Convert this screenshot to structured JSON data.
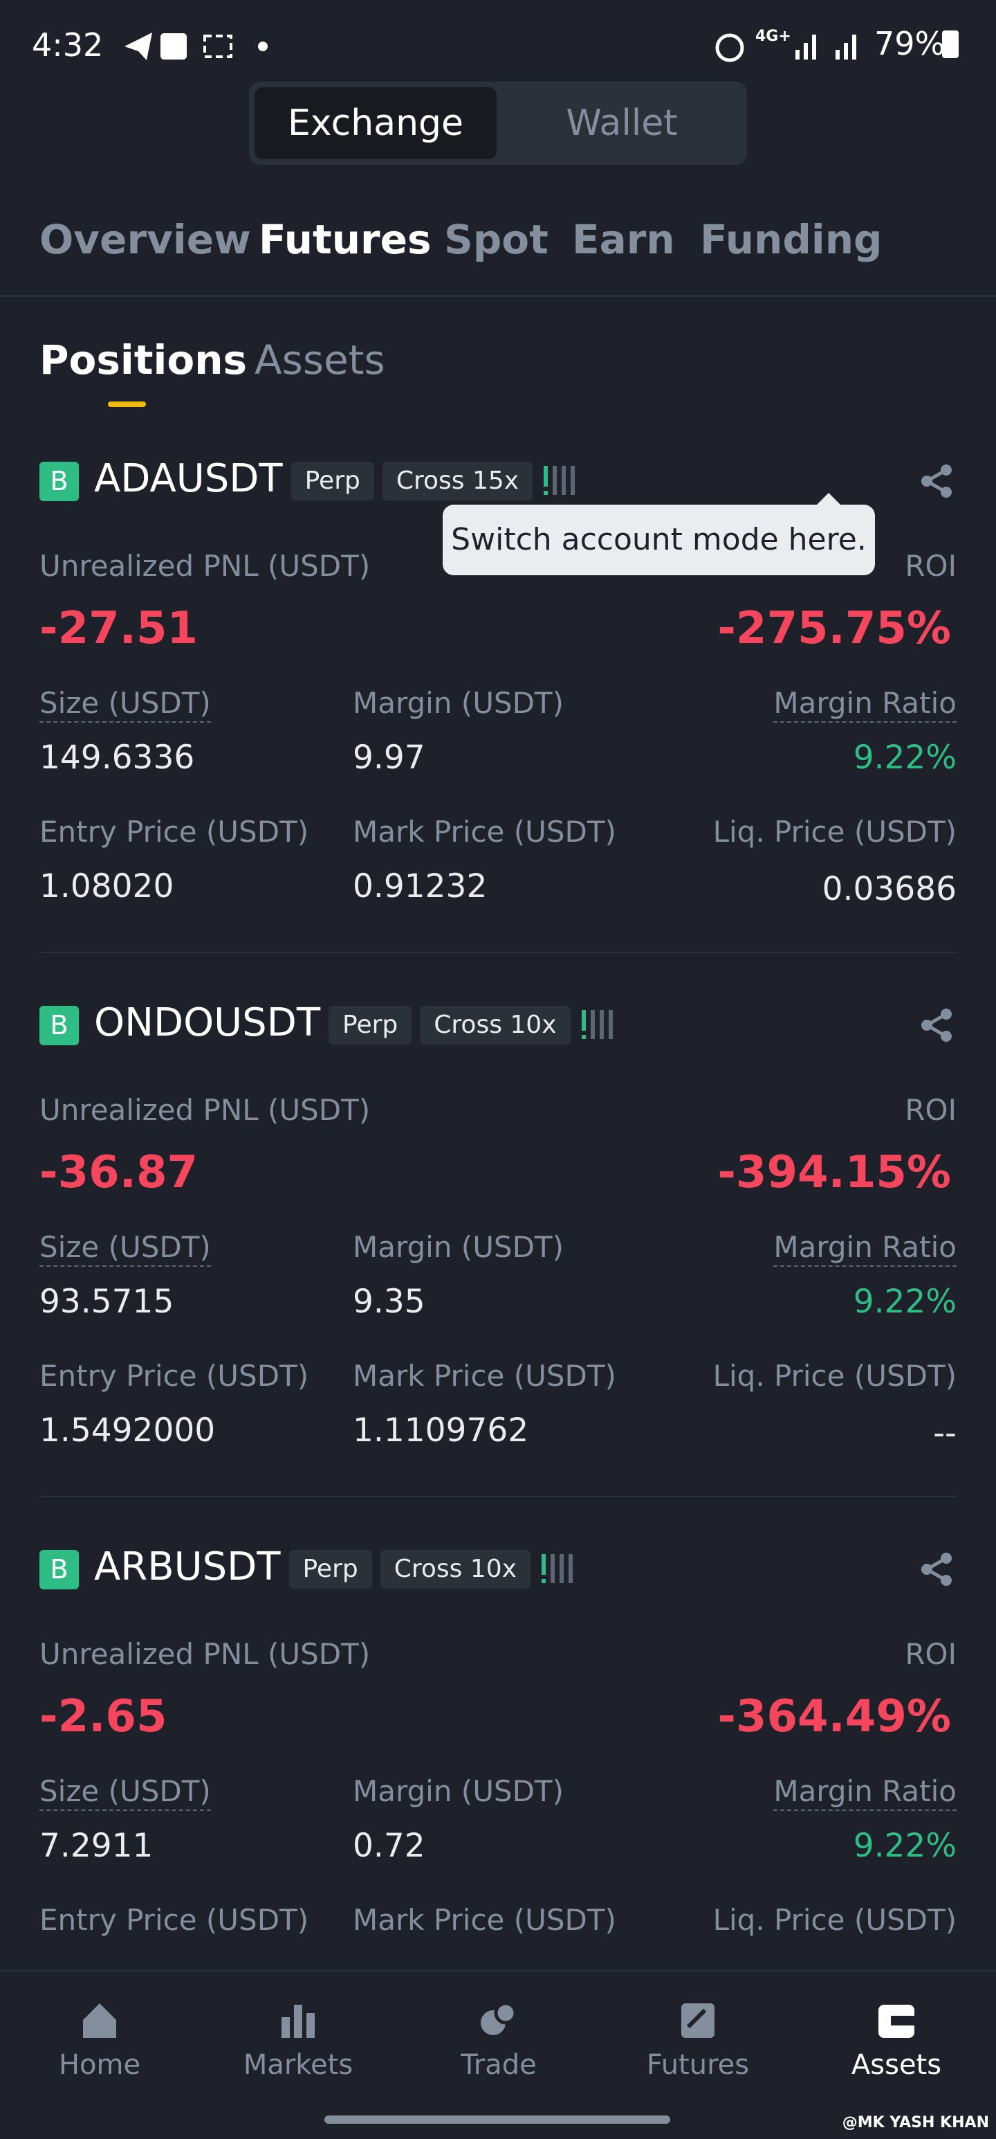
{
  "status_bar": {
    "time": "4:32",
    "network": "4G+",
    "battery": "79%"
  },
  "account_toggle": [
    "Exchange",
    "Wallet"
  ],
  "tabs": [
    "Overview",
    "Futures",
    "Spot",
    "Earn",
    "Funding"
  ],
  "sub_tabs": [
    "Positions",
    "Assets"
  ],
  "tooltip": "Switch account mode here.",
  "labels": {
    "pnl": "Unrealized PNL (USDT)",
    "roi": "ROI",
    "size": "Size (USDT)",
    "margin": "Margin (USDT)",
    "margin_ratio": "Margin Ratio",
    "entry": "Entry Price (USDT)",
    "mark": "Mark Price (USDT)",
    "liq": "Liq. Price (USDT)"
  },
  "positions": [
    {
      "badge": "B",
      "symbol": "ADAUSDT",
      "type": "Perp",
      "mode": "Cross 15x",
      "pnl": "-27.51",
      "roi": "-275.75%",
      "size": "149.6336",
      "margin": "9.97",
      "margin_ratio": "9.22%",
      "entry": "1.08020",
      "mark": "0.91232",
      "liq": "0.03686"
    },
    {
      "badge": "B",
      "symbol": "ONDOUSDT",
      "type": "Perp",
      "mode": "Cross 10x",
      "pnl": "-36.87",
      "roi": "-394.15%",
      "size": "93.5715",
      "margin": "9.35",
      "margin_ratio": "9.22%",
      "entry": "1.5492000",
      "mark": "1.1109762",
      "liq": "--"
    },
    {
      "badge": "B",
      "symbol": "ARBUSDT",
      "type": "Perp",
      "mode": "Cross 10x",
      "pnl": "-2.65",
      "roi": "-364.49%",
      "size": "7.2911",
      "margin": "0.72",
      "margin_ratio": "9.22%"
    }
  ],
  "nav": [
    "Home",
    "Markets",
    "Trade",
    "Futures",
    "Assets"
  ],
  "watermark": "@MK YASH KHAN"
}
